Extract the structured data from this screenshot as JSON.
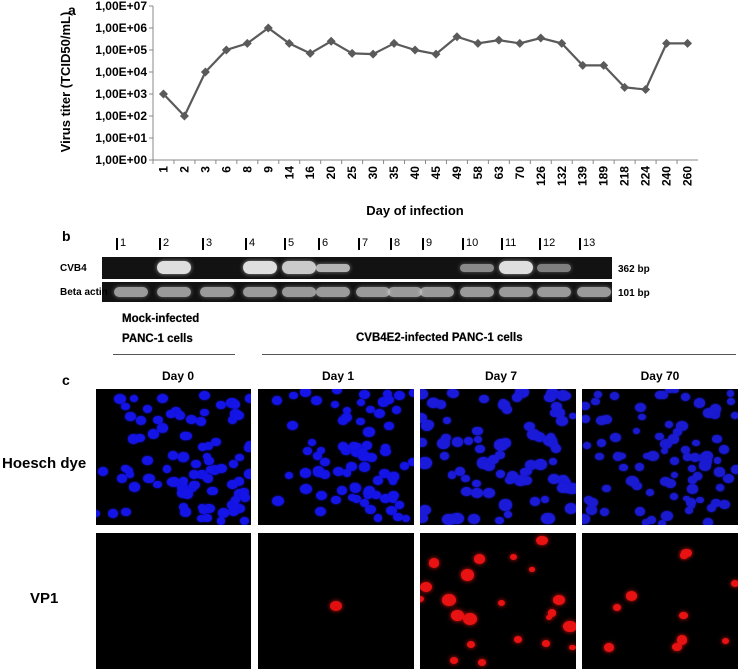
{
  "panels": {
    "a": "a",
    "b": "b",
    "c": "c"
  },
  "chart_data": {
    "type": "line",
    "title": "",
    "xlabel": "Day of infection",
    "ylabel": "Virus titer (TCID50/mL)",
    "y_scale": "log10",
    "ylim": [
      1,
      10000000
    ],
    "y_ticks": [
      "1,00E+00",
      "1,00E+01",
      "1,00E+02",
      "1,00E+03",
      "1,00E+04",
      "1,00E+05",
      "1,00E+06",
      "1,00E+07"
    ],
    "categories": [
      "1",
      "2",
      "3",
      "6",
      "8",
      "9",
      "14",
      "16",
      "20",
      "25",
      "30",
      "35",
      "40",
      "45",
      "49",
      "58",
      "63",
      "70",
      "126",
      "132",
      "139",
      "189",
      "218",
      "224",
      "240",
      "260"
    ],
    "values": [
      1000,
      100,
      10000,
      100000,
      200000,
      1000000,
      200000,
      70000,
      250000,
      70000,
      65000,
      200000,
      100000,
      65000,
      400000,
      200000,
      280000,
      200000,
      350000,
      200000,
      20000,
      20000,
      2000,
      1600,
      200000,
      200000
    ],
    "series_color": "#5a5a5a",
    "marker": "diamond"
  },
  "gel": {
    "lanes": [
      "1",
      "2",
      "3",
      "4",
      "5",
      "6",
      "7",
      "8",
      "9",
      "10",
      "11",
      "12",
      "13"
    ],
    "rows": [
      {
        "label": "CVB4",
        "bp": "362 bp"
      },
      {
        "label": "Beta actin",
        "bp": "101 bp"
      }
    ]
  },
  "groups": {
    "mock": {
      "line1": "Mock-infected",
      "line2": "PANC-1 cells"
    },
    "infected": "CVB4E2-infected PANC-1 cells"
  },
  "microscopy": {
    "days": [
      "Day 0",
      "Day 1",
      "Day 7",
      "Day 70"
    ],
    "rows": [
      "Hoesch dye",
      "VP1"
    ]
  }
}
